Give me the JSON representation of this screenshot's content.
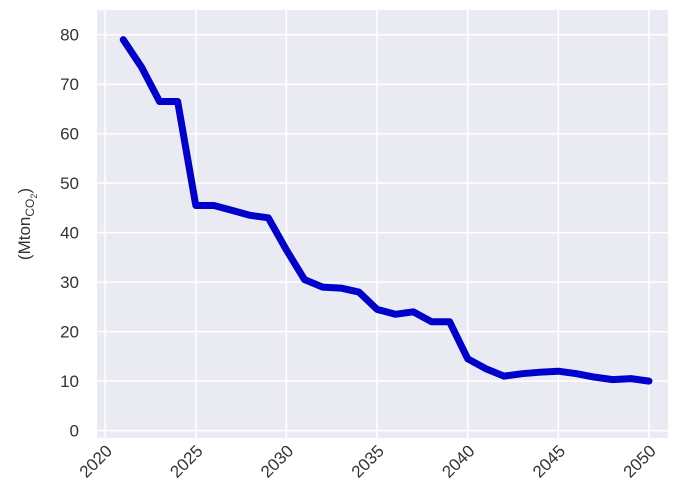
{
  "chart_data": {
    "type": "line",
    "ylabel": {
      "text": "(Mton",
      "sub": "CO",
      "subsub": "2",
      "close": ")"
    },
    "x": [
      2021,
      2022,
      2023,
      2024,
      2025,
      2026,
      2027,
      2028,
      2029,
      2030,
      2031,
      2032,
      2033,
      2034,
      2035,
      2036,
      2037,
      2038,
      2039,
      2040,
      2041,
      2042,
      2043,
      2044,
      2045,
      2046,
      2047,
      2048,
      2049,
      2050
    ],
    "series": [
      {
        "color": "#0000cc",
        "values": [
          79,
          73.5,
          66.5,
          66.5,
          45.5,
          45.5,
          44.5,
          43.5,
          43,
          36.5,
          30.5,
          29,
          28.8,
          28,
          24.5,
          23.5,
          24,
          22,
          22,
          14.5,
          12.5,
          11,
          11.5,
          11.8,
          12,
          11.5,
          10.8,
          10.3,
          10.5,
          10
        ]
      }
    ],
    "xlim": [
      2019.55,
      2051.05
    ],
    "xticks": [
      2020,
      2025,
      2030,
      2035,
      2040,
      2045,
      2050
    ],
    "ylim": [
      -1.5,
      85
    ],
    "yticks": [
      0,
      10,
      20,
      30,
      40,
      50,
      60,
      70,
      80
    ],
    "grid": true
  }
}
